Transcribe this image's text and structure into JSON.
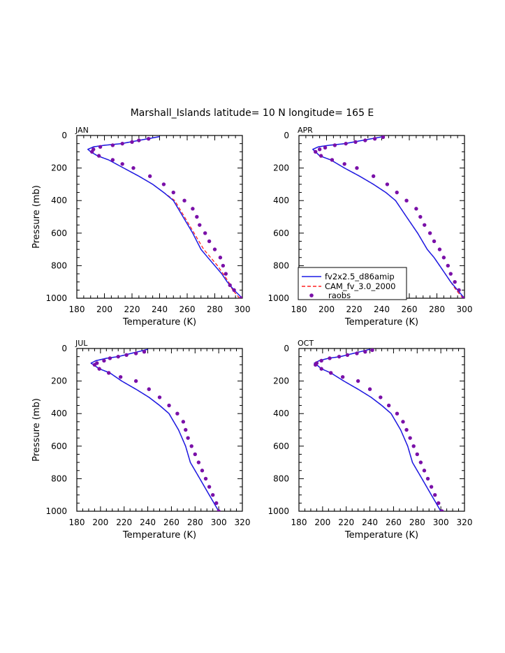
{
  "title": "Marshall_Islands  latitude= 10 N longitude= 165 E",
  "legend": {
    "entries": [
      {
        "label": "fv2x2.5_d86amip",
        "style": "line",
        "color": "#1a1ae6"
      },
      {
        "label": "CAM_fv_3.0_2000",
        "style": "dashed",
        "color": "#ff2020"
      },
      {
        "label": "raobs",
        "style": "marker",
        "color": "#7a10a8"
      }
    ]
  },
  "colors": {
    "fv2x2.5_d86amip": "#1a1ae6",
    "CAM_fv_3.0_2000": "#ff2020",
    "raobs": "#7a10a8"
  },
  "chart_data": [
    {
      "type": "line",
      "panel": "JAN",
      "xlabel": "Temperature (K)",
      "ylabel": "Pressure (mb)",
      "xlim": [
        180,
        300
      ],
      "xticks": [
        180,
        200,
        220,
        240,
        260,
        280,
        300
      ],
      "ylim": [
        1000,
        0
      ],
      "yticks": [
        0,
        200,
        400,
        600,
        800,
        1000
      ],
      "series": [
        {
          "name": "fv2x2.5_d86amip",
          "x": [
            300,
            294,
            289,
            285,
            280,
            275,
            270,
            264,
            257,
            250,
            243,
            235,
            225,
            214,
            203,
            195,
            190,
            188,
            192,
            200,
            212,
            225,
            240
          ],
          "y": [
            1000,
            950,
            900,
            850,
            800,
            750,
            700,
            600,
            500,
            400,
            350,
            300,
            250,
            200,
            150,
            125,
            100,
            85,
            70,
            60,
            50,
            30,
            7
          ]
        },
        {
          "name": "CAM_fv_3.0_2000",
          "x": [
            298,
            293,
            290,
            286,
            282,
            277,
            272,
            265,
            258,
            251,
            243,
            235,
            225,
            214,
            203,
            195,
            190,
            188,
            192,
            200,
            212,
            225,
            240
          ],
          "y": [
            1000,
            950,
            900,
            850,
            800,
            750,
            700,
            600,
            500,
            400,
            350,
            300,
            250,
            200,
            150,
            125,
            100,
            85,
            70,
            60,
            50,
            30,
            7
          ]
        },
        {
          "name": "raobs",
          "x": [
            299,
            294,
            291,
            288,
            286,
            284,
            280,
            276,
            273,
            269,
            267,
            264,
            258,
            250,
            243,
            233,
            221,
            213,
            206,
            196,
            191,
            192,
            197,
            206,
            213,
            220,
            225,
            232
          ],
          "y": [
            1000,
            950,
            920,
            850,
            800,
            750,
            700,
            650,
            600,
            550,
            500,
            450,
            400,
            350,
            300,
            250,
            200,
            175,
            150,
            125,
            100,
            85,
            70,
            60,
            50,
            40,
            30,
            20
          ]
        }
      ]
    },
    {
      "type": "line",
      "panel": "APR",
      "xlabel": "Temperature (K)",
      "ylabel": "",
      "xlim": [
        180,
        300
      ],
      "xticks": [
        180,
        200,
        220,
        240,
        260,
        280,
        300
      ],
      "ylim": [
        1000,
        0
      ],
      "yticks": [
        0,
        200,
        400,
        600,
        800,
        1000
      ],
      "series": [
        {
          "name": "fv2x2.5_d86amip",
          "x": [
            300,
            295,
            290,
            286,
            282,
            278,
            273,
            266,
            258,
            250,
            243,
            234,
            224,
            213,
            203,
            195,
            192,
            190,
            194,
            202,
            213,
            226,
            241
          ],
          "y": [
            1000,
            950,
            900,
            850,
            800,
            750,
            700,
            600,
            500,
            400,
            350,
            300,
            250,
            200,
            150,
            125,
            100,
            85,
            70,
            60,
            50,
            30,
            7
          ]
        },
        {
          "name": "CAM_fv_3.0_2000",
          "x": [
            299,
            294,
            290,
            286,
            282,
            278,
            273,
            266,
            258,
            250,
            243,
            234,
            224,
            213,
            203,
            195,
            192,
            190,
            194,
            202,
            213,
            226,
            241
          ],
          "y": [
            1000,
            950,
            900,
            850,
            800,
            750,
            700,
            600,
            500,
            400,
            350,
            300,
            250,
            200,
            150,
            125,
            100,
            85,
            70,
            60,
            50,
            30,
            7
          ]
        },
        {
          "name": "raobs",
          "x": [
            299,
            296,
            293,
            290,
            288,
            285,
            282,
            278,
            275,
            271,
            268,
            265,
            258,
            251,
            244,
            234,
            222,
            213,
            204,
            196,
            192,
            195,
            199,
            206,
            214,
            221,
            228,
            235,
            241
          ],
          "y": [
            1000,
            950,
            900,
            850,
            800,
            750,
            700,
            650,
            600,
            550,
            500,
            450,
            400,
            350,
            300,
            250,
            200,
            175,
            150,
            125,
            100,
            85,
            75,
            60,
            50,
            40,
            30,
            20,
            10
          ]
        }
      ]
    },
    {
      "type": "line",
      "panel": "JUL",
      "xlabel": "Temperature (K)",
      "ylabel": "Pressure (mb)",
      "xlim": [
        180,
        320
      ],
      "xticks": [
        180,
        200,
        220,
        240,
        260,
        280,
        300,
        320
      ],
      "ylim": [
        1000,
        0
      ],
      "yticks": [
        0,
        200,
        400,
        600,
        800,
        1000
      ],
      "series": [
        {
          "name": "fv2x2.5_d86amip",
          "x": [
            300,
            296,
            292,
            288,
            284,
            280,
            276,
            272,
            266,
            258,
            250,
            241,
            230,
            218,
            208,
            199,
            194,
            192,
            196,
            205,
            215,
            226,
            240
          ],
          "y": [
            1000,
            950,
            900,
            850,
            800,
            750,
            700,
            600,
            500,
            400,
            350,
            300,
            250,
            200,
            150,
            125,
            100,
            90,
            75,
            60,
            50,
            30,
            5
          ]
        },
        {
          "name": "CAM_fv_3.0_2000",
          "x": [
            300,
            296,
            292,
            288,
            284,
            280,
            276,
            272,
            266,
            258,
            250,
            241,
            230,
            218,
            208,
            199,
            194,
            192,
            196,
            205,
            215,
            226,
            240
          ],
          "y": [
            1000,
            950,
            900,
            850,
            800,
            750,
            700,
            600,
            500,
            400,
            350,
            300,
            250,
            200,
            150,
            125,
            100,
            90,
            75,
            60,
            50,
            30,
            5
          ]
        },
        {
          "name": "raobs",
          "x": [
            300,
            298,
            295,
            292,
            289,
            286,
            283,
            280,
            277,
            274,
            272,
            270,
            265,
            258,
            250,
            241,
            230,
            217,
            207,
            199,
            195,
            197,
            203,
            208,
            215,
            222,
            230,
            237
          ],
          "y": [
            1000,
            950,
            900,
            850,
            800,
            750,
            700,
            650,
            600,
            550,
            500,
            450,
            400,
            350,
            300,
            250,
            200,
            175,
            150,
            125,
            100,
            90,
            75,
            60,
            50,
            40,
            30,
            20
          ]
        }
      ]
    },
    {
      "type": "line",
      "panel": "OCT",
      "xlabel": "Temperature (K)",
      "ylabel": "",
      "xlim": [
        180,
        320
      ],
      "xticks": [
        180,
        200,
        220,
        240,
        260,
        280,
        300,
        320
      ],
      "ylim": [
        1000,
        0
      ],
      "yticks": [
        0,
        200,
        400,
        600,
        800,
        1000
      ],
      "series": [
        {
          "name": "fv2x2.5_d86amip",
          "x": [
            300,
            296,
            292,
            288,
            284,
            280,
            276,
            272,
            266,
            258,
            250,
            241,
            230,
            218,
            207,
            199,
            195,
            193,
            197,
            205,
            215,
            226,
            240
          ],
          "y": [
            1000,
            950,
            900,
            850,
            800,
            750,
            700,
            600,
            500,
            400,
            350,
            300,
            250,
            200,
            150,
            125,
            100,
            90,
            75,
            60,
            50,
            30,
            5
          ]
        },
        {
          "name": "CAM_fv_3.0_2000",
          "x": [
            300,
            296,
            292,
            288,
            284,
            280,
            276,
            272,
            266,
            258,
            250,
            241,
            230,
            218,
            207,
            199,
            195,
            193,
            197,
            205,
            215,
            226,
            240
          ],
          "y": [
            1000,
            950,
            900,
            850,
            800,
            750,
            700,
            600,
            500,
            400,
            350,
            300,
            250,
            200,
            150,
            125,
            100,
            90,
            75,
            60,
            50,
            30,
            5
          ]
        },
        {
          "name": "raobs",
          "x": [
            301,
            298,
            295,
            292,
            289,
            286,
            283,
            280,
            277,
            274,
            271,
            268,
            263,
            256,
            249,
            240,
            230,
            217,
            207,
            199,
            194,
            195,
            199,
            206,
            214,
            221,
            229,
            236,
            242
          ],
          "y": [
            1000,
            950,
            900,
            850,
            800,
            750,
            700,
            650,
            600,
            550,
            500,
            450,
            400,
            350,
            300,
            250,
            200,
            175,
            150,
            125,
            100,
            90,
            75,
            60,
            50,
            40,
            30,
            20,
            10
          ]
        }
      ]
    }
  ]
}
